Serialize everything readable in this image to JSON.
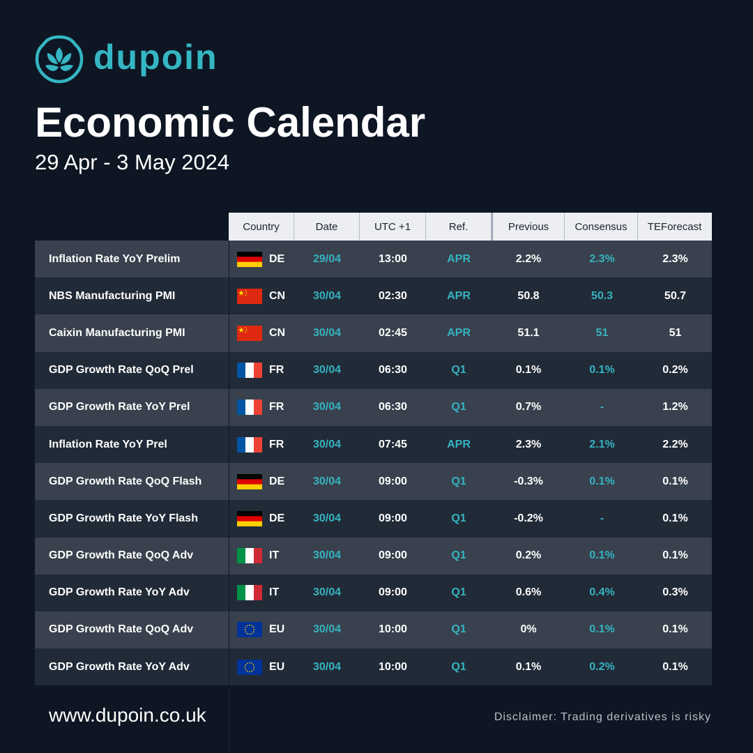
{
  "brand": {
    "name": "dupoin",
    "logo_icon": "lotus-icon",
    "accent": "#35b6c3"
  },
  "title": "Economic Calendar",
  "subtitle": "29 Apr - 3 May 2024",
  "columns": {
    "country": "Country",
    "date": "Date",
    "time": "UTC +1",
    "ref": "Ref.",
    "previous": "Previous",
    "consensus": "Consensus",
    "forecast": "TEForecast"
  },
  "rows": [
    {
      "event": "Inflation Rate YoY Prelim",
      "country": "DE",
      "flag": "germany-flag-icon",
      "date": "29/04",
      "time": "13:00",
      "ref": "APR",
      "previous": "2.2%",
      "consensus": "2.3%",
      "forecast": "2.3%"
    },
    {
      "event": "NBS Manufacturing PMI",
      "country": "CN",
      "flag": "china-flag-icon",
      "date": "30/04",
      "time": "02:30",
      "ref": "APR",
      "previous": "50.8",
      "consensus": "50.3",
      "forecast": "50.7"
    },
    {
      "event": "Caixin Manufacturing PMI",
      "country": "CN",
      "flag": "china-flag-icon",
      "date": "30/04",
      "time": "02:45",
      "ref": "APR",
      "previous": "51.1",
      "consensus": "51",
      "forecast": "51"
    },
    {
      "event": "GDP Growth Rate QoQ Prel",
      "country": "FR",
      "flag": "france-flag-icon",
      "date": "30/04",
      "time": "06:30",
      "ref": "Q1",
      "previous": "0.1%",
      "consensus": "0.1%",
      "forecast": "0.2%"
    },
    {
      "event": "GDP Growth Rate YoY Prel",
      "country": "FR",
      "flag": "france-flag-icon",
      "date": "30/04",
      "time": "06:30",
      "ref": "Q1",
      "previous": "0.7%",
      "consensus": "-",
      "forecast": "1.2%"
    },
    {
      "event": "Inflation Rate YoY Prel",
      "country": "FR",
      "flag": "france-flag-icon",
      "date": "30/04",
      "time": "07:45",
      "ref": "APR",
      "previous": "2.3%",
      "consensus": "2.1%",
      "forecast": "2.2%"
    },
    {
      "event": "GDP Growth Rate QoQ Flash",
      "country": "DE",
      "flag": "germany-flag-icon",
      "date": "30/04",
      "time": "09:00",
      "ref": "Q1",
      "previous": "-0.3%",
      "consensus": "0.1%",
      "forecast": "0.1%"
    },
    {
      "event": "GDP Growth Rate YoY Flash",
      "country": "DE",
      "flag": "germany-flag-icon",
      "date": "30/04",
      "time": "09:00",
      "ref": "Q1",
      "previous": "-0.2%",
      "consensus": "-",
      "forecast": "0.1%"
    },
    {
      "event": "GDP Growth Rate QoQ Adv",
      "country": "IT",
      "flag": "italy-flag-icon",
      "date": "30/04",
      "time": "09:00",
      "ref": "Q1",
      "previous": "0.2%",
      "consensus": "0.1%",
      "forecast": "0.1%"
    },
    {
      "event": "GDP Growth Rate YoY Adv",
      "country": "IT",
      "flag": "italy-flag-icon",
      "date": "30/04",
      "time": "09:00",
      "ref": "Q1",
      "previous": "0.6%",
      "consensus": "0.4%",
      "forecast": "0.3%"
    },
    {
      "event": "GDP Growth Rate QoQ Adv",
      "country": "EU",
      "flag": "eu-flag-icon",
      "date": "30/04",
      "time": "10:00",
      "ref": "Q1",
      "previous": "0%",
      "consensus": "0.1%",
      "forecast": "0.1%"
    },
    {
      "event": "GDP Growth Rate YoY Adv",
      "country": "EU",
      "flag": "eu-flag-icon",
      "date": "30/04",
      "time": "10:00",
      "ref": "Q1",
      "previous": "0.1%",
      "consensus": "0.2%",
      "forecast": "0.1%"
    }
  ],
  "footer": {
    "website": "www.dupoin.co.uk",
    "disclaimer": "Disclaimer: Trading derivatives is risky"
  }
}
